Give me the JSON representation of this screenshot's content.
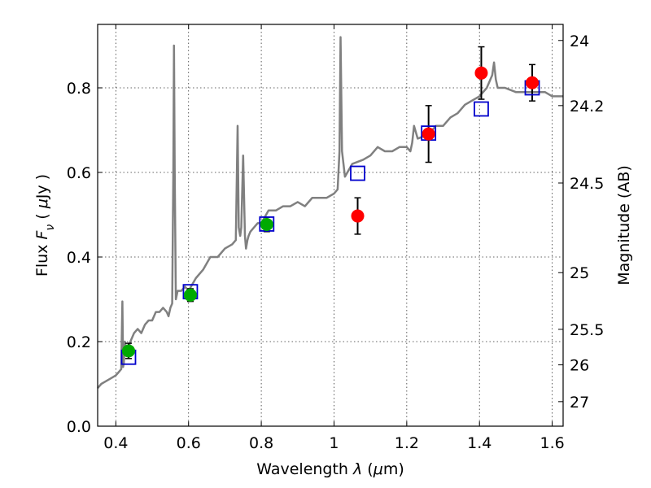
{
  "chart_data": {
    "type": "scatter",
    "xlabel": "Wavelength  λ (μm)",
    "ylabel": "Flux  F_ν  ( μJy )",
    "ylabel_right": "Magnitude (AB)",
    "xlim": [
      0.35,
      1.63
    ],
    "ylim": [
      0.0,
      0.95
    ],
    "grid": true,
    "x_ticks": [
      0.4,
      0.6,
      0.8,
      1.0,
      1.2,
      1.4,
      1.6
    ],
    "x_tick_labels": [
      "0.4",
      "0.6",
      "0.8",
      "1",
      "1.2",
      "1.4",
      "1.6"
    ],
    "y_ticks": [
      0.0,
      0.2,
      0.4,
      0.6,
      0.8
    ],
    "y_tick_labels": [
      "0.0",
      "0.2",
      "0.4",
      "0.6",
      "0.8"
    ],
    "right_ticks": [
      {
        "label": "24",
        "flux": 0.912
      },
      {
        "label": "24.2",
        "flux": 0.758
      },
      {
        "label": "24.5",
        "flux": 0.575
      },
      {
        "label": "25",
        "flux": 0.363
      },
      {
        "label": "25.5",
        "flux": 0.229
      },
      {
        "label": "26",
        "flux": 0.145
      },
      {
        "label": "27",
        "flux": 0.058
      }
    ],
    "series": [
      {
        "kind": "model_spectrum",
        "color": "#808080",
        "x": [
          0.35,
          0.36,
          0.37,
          0.38,
          0.39,
          0.4,
          0.405,
          0.41,
          0.415,
          0.418,
          0.42,
          0.422,
          0.425,
          0.43,
          0.44,
          0.45,
          0.46,
          0.47,
          0.48,
          0.49,
          0.5,
          0.51,
          0.52,
          0.53,
          0.54,
          0.545,
          0.55,
          0.555,
          0.558,
          0.56,
          0.562,
          0.565,
          0.57,
          0.58,
          0.59,
          0.6,
          0.62,
          0.64,
          0.66,
          0.68,
          0.7,
          0.72,
          0.73,
          0.735,
          0.738,
          0.742,
          0.745,
          0.75,
          0.755,
          0.758,
          0.762,
          0.765,
          0.77,
          0.78,
          0.79,
          0.8,
          0.82,
          0.84,
          0.86,
          0.88,
          0.9,
          0.92,
          0.94,
          0.96,
          0.98,
          1.0,
          1.01,
          1.015,
          1.018,
          1.022,
          1.03,
          1.05,
          1.08,
          1.1,
          1.12,
          1.14,
          1.16,
          1.18,
          1.2,
          1.21,
          1.215,
          1.22,
          1.23,
          1.26,
          1.28,
          1.3,
          1.32,
          1.34,
          1.36,
          1.38,
          1.4,
          1.42,
          1.435,
          1.44,
          1.445,
          1.45,
          1.47,
          1.5,
          1.52,
          1.55,
          1.58,
          1.6,
          1.62,
          1.63
        ],
        "y": [
          0.09,
          0.1,
          0.105,
          0.11,
          0.115,
          0.12,
          0.125,
          0.13,
          0.135,
          0.295,
          0.14,
          0.15,
          0.2,
          0.17,
          0.2,
          0.22,
          0.23,
          0.22,
          0.24,
          0.25,
          0.25,
          0.27,
          0.27,
          0.28,
          0.27,
          0.26,
          0.28,
          0.29,
          0.6,
          0.9,
          0.6,
          0.3,
          0.32,
          0.32,
          0.33,
          0.32,
          0.35,
          0.37,
          0.4,
          0.4,
          0.42,
          0.43,
          0.44,
          0.71,
          0.47,
          0.45,
          0.47,
          0.64,
          0.45,
          0.42,
          0.44,
          0.45,
          0.46,
          0.47,
          0.48,
          0.48,
          0.51,
          0.51,
          0.52,
          0.52,
          0.53,
          0.52,
          0.54,
          0.54,
          0.54,
          0.55,
          0.56,
          0.65,
          0.92,
          0.65,
          0.59,
          0.62,
          0.63,
          0.64,
          0.66,
          0.65,
          0.65,
          0.66,
          0.66,
          0.65,
          0.67,
          0.71,
          0.68,
          0.69,
          0.71,
          0.71,
          0.73,
          0.74,
          0.76,
          0.77,
          0.78,
          0.8,
          0.83,
          0.86,
          0.82,
          0.8,
          0.8,
          0.79,
          0.79,
          0.79,
          0.79,
          0.78,
          0.78,
          0.78
        ]
      },
      {
        "kind": "model_points",
        "marker": "open-square",
        "color": "#0000cc",
        "x": [
          0.435,
          0.605,
          0.815,
          1.065,
          1.26,
          1.405,
          1.545
        ],
        "y": [
          0.163,
          0.318,
          0.478,
          0.598,
          0.693,
          0.75,
          0.8
        ]
      },
      {
        "kind": "observed_optical",
        "marker": "filled-circle",
        "color": "#00aa00",
        "x": [
          0.435,
          0.605,
          0.815
        ],
        "y": [
          0.178,
          0.31,
          0.477
        ],
        "yerr": [
          0.018,
          0.015,
          0.017
        ]
      },
      {
        "kind": "observed_nir",
        "marker": "filled-circle",
        "color": "#ff0000",
        "x": [
          1.065,
          1.26,
          1.405,
          1.545
        ],
        "y": [
          0.497,
          0.691,
          0.835,
          0.812
        ],
        "yerr": [
          0.043,
          0.067,
          0.062,
          0.043
        ]
      }
    ]
  }
}
